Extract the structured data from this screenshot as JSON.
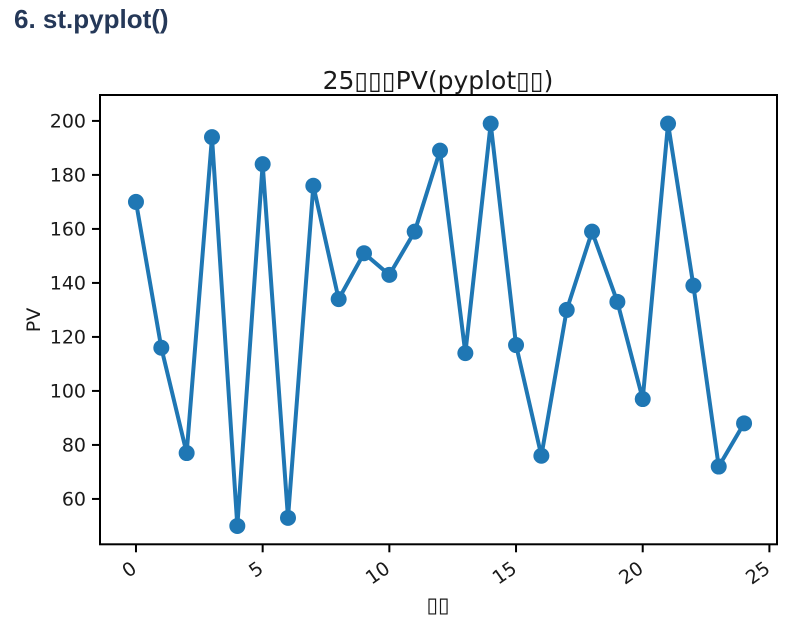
{
  "page": {
    "heading": "6. st.pyplot()"
  },
  "chart_data": {
    "type": "line",
    "title": "25▯▯▯PV(pyplot▯▯)",
    "xlabel": "▯▯",
    "ylabel": "PV",
    "x": [
      0,
      1,
      2,
      3,
      4,
      5,
      6,
      7,
      8,
      9,
      10,
      11,
      12,
      13,
      14,
      15,
      16,
      17,
      18,
      19,
      20,
      21,
      22,
      23,
      24
    ],
    "values": [
      170,
      116,
      77,
      194,
      50,
      184,
      53,
      176,
      134,
      151,
      143,
      159,
      189,
      114,
      199,
      117,
      76,
      130,
      159,
      133,
      97,
      199,
      139,
      72,
      88
    ],
    "x_ticks": [
      0,
      5,
      10,
      15,
      20,
      25
    ],
    "y_ticks": [
      200,
      180,
      160,
      140,
      120,
      100,
      80,
      60
    ],
    "xlim": [
      -1.42,
      25.3
    ],
    "ylim": [
      43.2,
      209.6
    ],
    "line_color": "#1f77b4",
    "marker": "circle",
    "grid": false,
    "legend": "none",
    "note": "missing-glyph tofu boxes appear in title and x-axis label"
  },
  "colors": {
    "heading_text": "#253858",
    "series_blue": "#1f77b4",
    "axis_black": "#000000"
  }
}
